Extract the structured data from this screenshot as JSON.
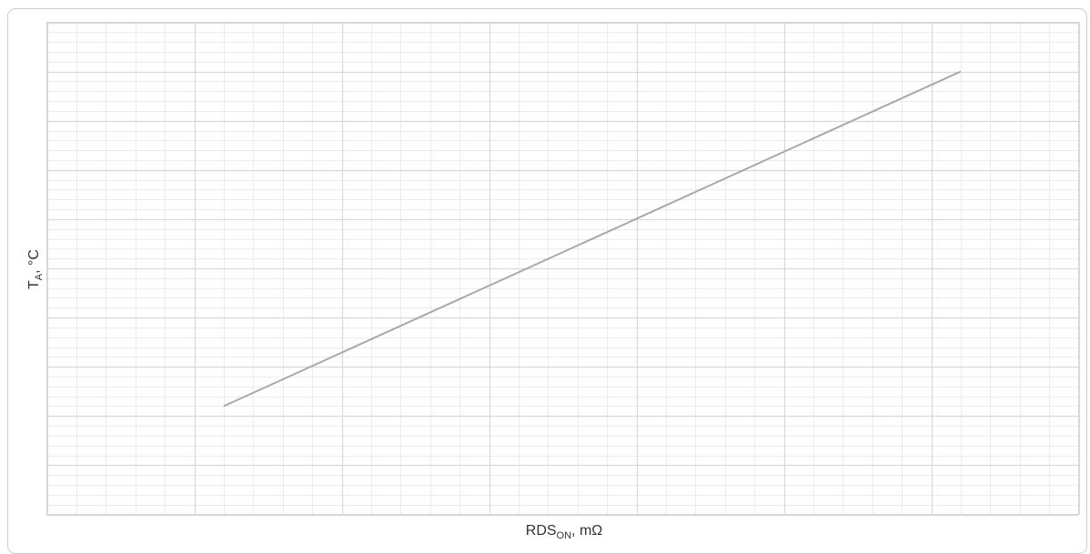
{
  "chart_data": {
    "type": "line",
    "title": "",
    "xlabel": {
      "main": "RDS",
      "sub": "ON",
      "rest": ", mΩ"
    },
    "ylabel": {
      "main": "T",
      "sub": "A",
      "rest": ", °C"
    },
    "xlim": [
      0,
      70
    ],
    "ylim": [
      0,
      100
    ],
    "x_major_step": 10,
    "x_minor_step": 2,
    "y_major_step": 10,
    "y_minor_step": 2,
    "grid": true,
    "tick_labels_shown": false,
    "series": [
      {
        "x": [
          12,
          62
        ],
        "y": [
          22,
          90
        ],
        "color": "#a8a8a8"
      }
    ]
  }
}
